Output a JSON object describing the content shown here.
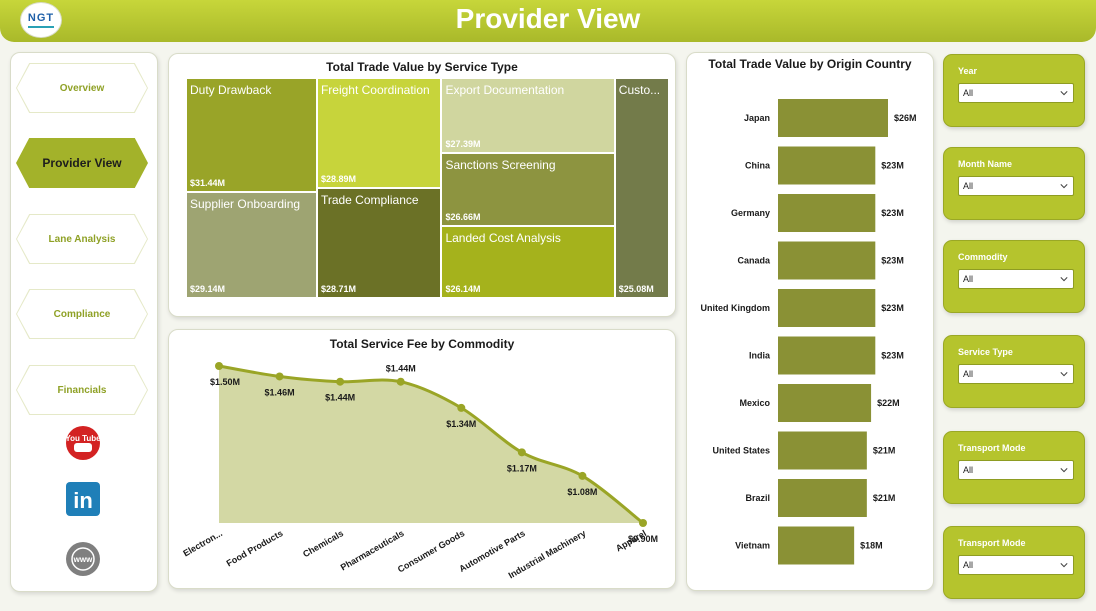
{
  "header": {
    "title": "Provider View",
    "logo_text": "NGT"
  },
  "nav": {
    "items": [
      {
        "label": "Overview",
        "active": false
      },
      {
        "label": "Provider View",
        "active": true
      },
      {
        "label": "Lane Analysis",
        "active": false
      },
      {
        "label": "Compliance",
        "active": false
      },
      {
        "label": "Financials",
        "active": false
      }
    ],
    "social": [
      "youtube-icon",
      "linkedin-icon",
      "web-icon"
    ],
    "youtube_text": "You Tube",
    "linkedin_text": "in",
    "web_text": "www"
  },
  "colors": {
    "accent": "#a3b22a",
    "header": "#b8c732",
    "bar": "#8a9135",
    "area_line": "#9aa526",
    "area_fill": "#d3d8a4"
  },
  "chart_data": [
    {
      "type": "treemap",
      "title": "Total Trade Value by Service Type",
      "items": [
        {
          "name": "Duty Drawback",
          "value": 31.44,
          "label": "$31.44M",
          "color": "#99a428"
        },
        {
          "name": "Supplier Onboarding",
          "value": 29.14,
          "label": "$29.14M",
          "color": "#9ea472"
        },
        {
          "name": "Freight Coordination",
          "value": 28.89,
          "label": "$28.89M",
          "color": "#c7d43b"
        },
        {
          "name": "Trade Compliance",
          "value": 28.71,
          "label": "$28.71M",
          "color": "#6b7126"
        },
        {
          "name": "Export Documentation",
          "value": 27.39,
          "label": "$27.39M",
          "color": "#d0d69f"
        },
        {
          "name": "Sanctions Screening",
          "value": 26.66,
          "label": "$26.66M",
          "color": "#8d9440"
        },
        {
          "name": "Landed Cost Analysis",
          "value": 26.14,
          "label": "$26.14M",
          "color": "#a5b21c"
        },
        {
          "name": "Custo...",
          "value": 25.08,
          "label": "$25.08M",
          "color": "#737b4a"
        }
      ]
    },
    {
      "type": "area",
      "title": "Total Service Fee by Commodity",
      "categories": [
        "Electron...",
        "Food Products",
        "Chemicals",
        "Pharmaceuticals",
        "Consumer Goods",
        "Automotive Parts",
        "Industrial Machinery",
        "Apparel"
      ],
      "values": [
        1.5,
        1.46,
        1.44,
        1.44,
        1.34,
        1.17,
        1.08,
        0.9
      ],
      "labels": [
        "$1.50M",
        "$1.46M",
        "$1.44M",
        "$1.44M",
        "$1.34M",
        "$1.17M",
        "$1.08M",
        "$0.90M"
      ],
      "ylim": [
        0.9,
        1.5
      ]
    },
    {
      "type": "bar",
      "orientation": "horizontal",
      "title": "Total Trade Value by Origin Country",
      "categories": [
        "Japan",
        "China",
        "Germany",
        "Canada",
        "United Kingdom",
        "India",
        "Mexico",
        "United States",
        "Brazil",
        "Vietnam"
      ],
      "values": [
        26,
        23,
        23,
        23,
        23,
        23,
        22,
        21,
        21,
        18
      ],
      "labels": [
        "$26M",
        "$23M",
        "$23M",
        "$23M",
        "$23M",
        "$23M",
        "$22M",
        "$21M",
        "$21M",
        "$18M"
      ],
      "xlim": [
        0,
        26
      ]
    }
  ],
  "slicers": [
    {
      "label": "Year",
      "value": "All"
    },
    {
      "label": "Month Name",
      "value": "All"
    },
    {
      "label": "Commodity",
      "value": "All"
    },
    {
      "label": "Service Type",
      "value": "All"
    },
    {
      "label": "Transport Mode",
      "value": "All"
    },
    {
      "label": "Transport Mode",
      "value": "All"
    }
  ]
}
